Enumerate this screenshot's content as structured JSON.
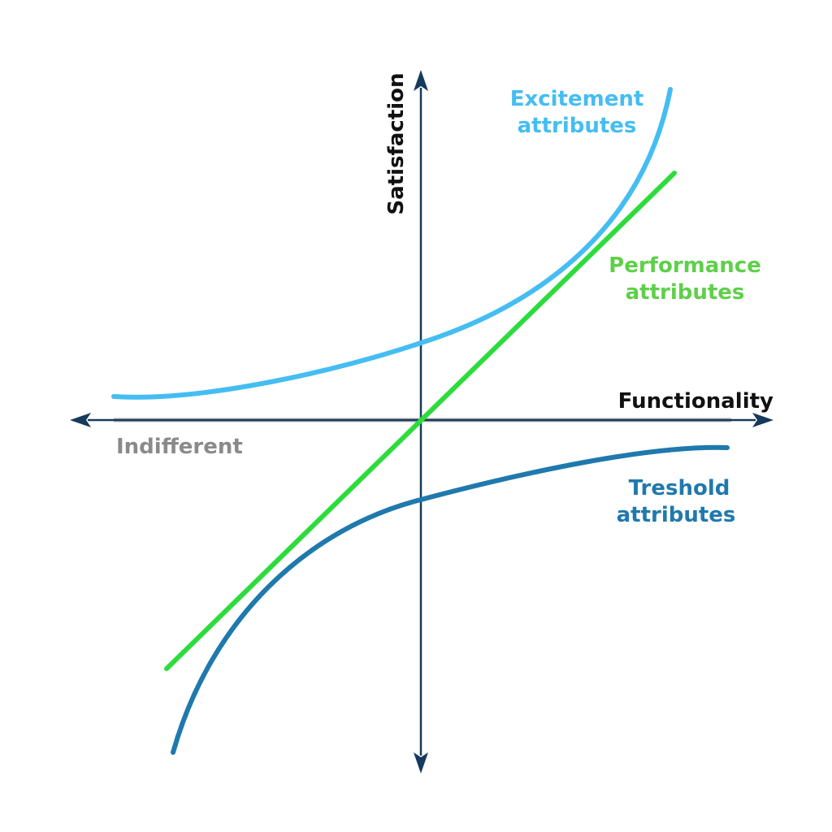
{
  "axes": {
    "x_label": "Functionality",
    "y_label": "Satisfaction",
    "axis_color": "#163a5c",
    "neutral_label": "Indifferent",
    "neutral_color": "#b3b3b3"
  },
  "curves": {
    "excitement": {
      "line1": "Excitement",
      "line2": "attributes",
      "color": "#45bdf2"
    },
    "performance": {
      "line1": "Performance",
      "line2": "attributes",
      "color": "#2ddc3c"
    },
    "threshold": {
      "line1": "Treshold",
      "line2": "attributes",
      "color": "#1f79ad"
    }
  }
}
